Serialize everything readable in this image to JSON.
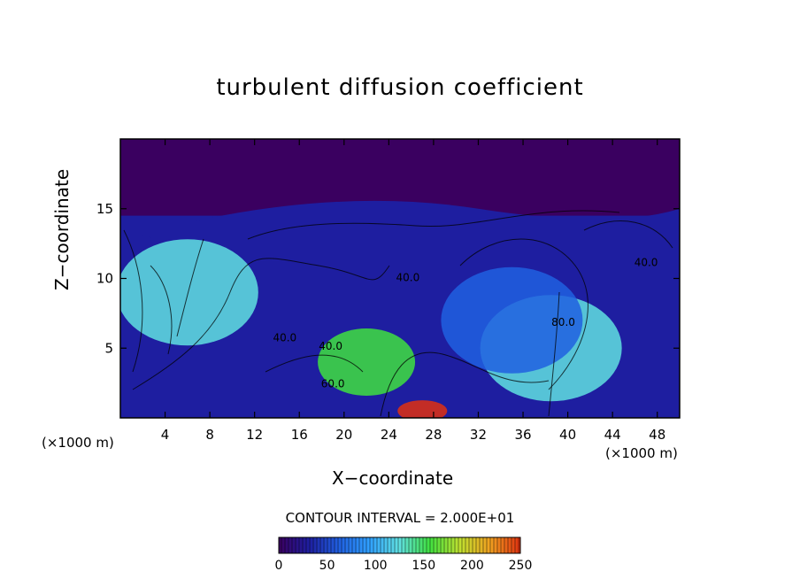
{
  "chart_data": {
    "type": "heatmap",
    "title": "turbulent diffusion coefficient",
    "xlabel": "X−coordinate",
    "ylabel": "Z−coordinate",
    "x_unit": "(×1000 m)",
    "y_unit": "(×1000 m)",
    "xlim": [
      0,
      50
    ],
    "ylim": [
      0,
      20
    ],
    "x_ticks": [
      4,
      8,
      12,
      16,
      20,
      24,
      28,
      32,
      36,
      40,
      44,
      48
    ],
    "y_ticks": [
      5,
      10,
      15
    ],
    "contour_interval": "CONTOUR INTERVAL = 2.000E+01",
    "contour_labels": [
      {
        "text": "40.0",
        "x": 47.0,
        "y": 10.9
      },
      {
        "text": "40.0",
        "x": 25.7,
        "y": 9.8
      },
      {
        "text": "40.0",
        "x": 14.7,
        "y": 5.5
      },
      {
        "text": "40.0",
        "x": 18.8,
        "y": 4.9
      },
      {
        "text": "60.0",
        "x": 19.0,
        "y": 2.2
      },
      {
        "text": "80.0",
        "x": 39.6,
        "y": 6.6
      }
    ],
    "colorbar": {
      "min": 0,
      "max": 250,
      "ticks": [
        0,
        50,
        100,
        150,
        200,
        250
      ],
      "colors": [
        "#3a0060",
        "#1e1ea0",
        "#2060e0",
        "#30a0ff",
        "#60e0e0",
        "#40e040",
        "#c0e030",
        "#f0a020",
        "#e03010"
      ]
    },
    "field_features": [
      {
        "value": 0,
        "region": "upper quiet layer above ~15 km"
      },
      {
        "value": 245,
        "x": 27,
        "y": 0.5
      },
      {
        "value": 150,
        "x": 22,
        "y": 4
      },
      {
        "value": 110,
        "x": 38.5,
        "y": 5
      },
      {
        "value": 70,
        "x": 35,
        "y": 7
      },
      {
        "value": 120,
        "x": 6,
        "y": 9
      }
    ]
  }
}
